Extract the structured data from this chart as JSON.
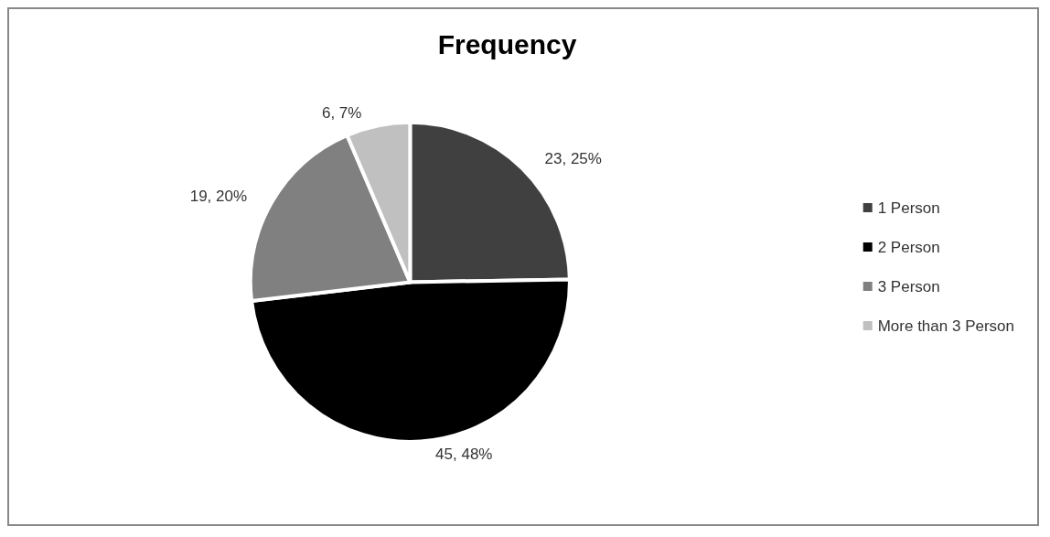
{
  "chart_data": {
    "type": "pie",
    "title": "Frequency",
    "categories": [
      "1 Person",
      "2 Person",
      "3 Person",
      "More than 3 Person"
    ],
    "values": [
      23,
      45,
      19,
      6
    ],
    "value_labels": [
      "23, 25%",
      "45, 48%",
      "19, 20%",
      "6, 7%"
    ],
    "colors": [
      "#404040",
      "#000000",
      "#808080",
      "#c0c0c0"
    ],
    "legend": "right"
  }
}
